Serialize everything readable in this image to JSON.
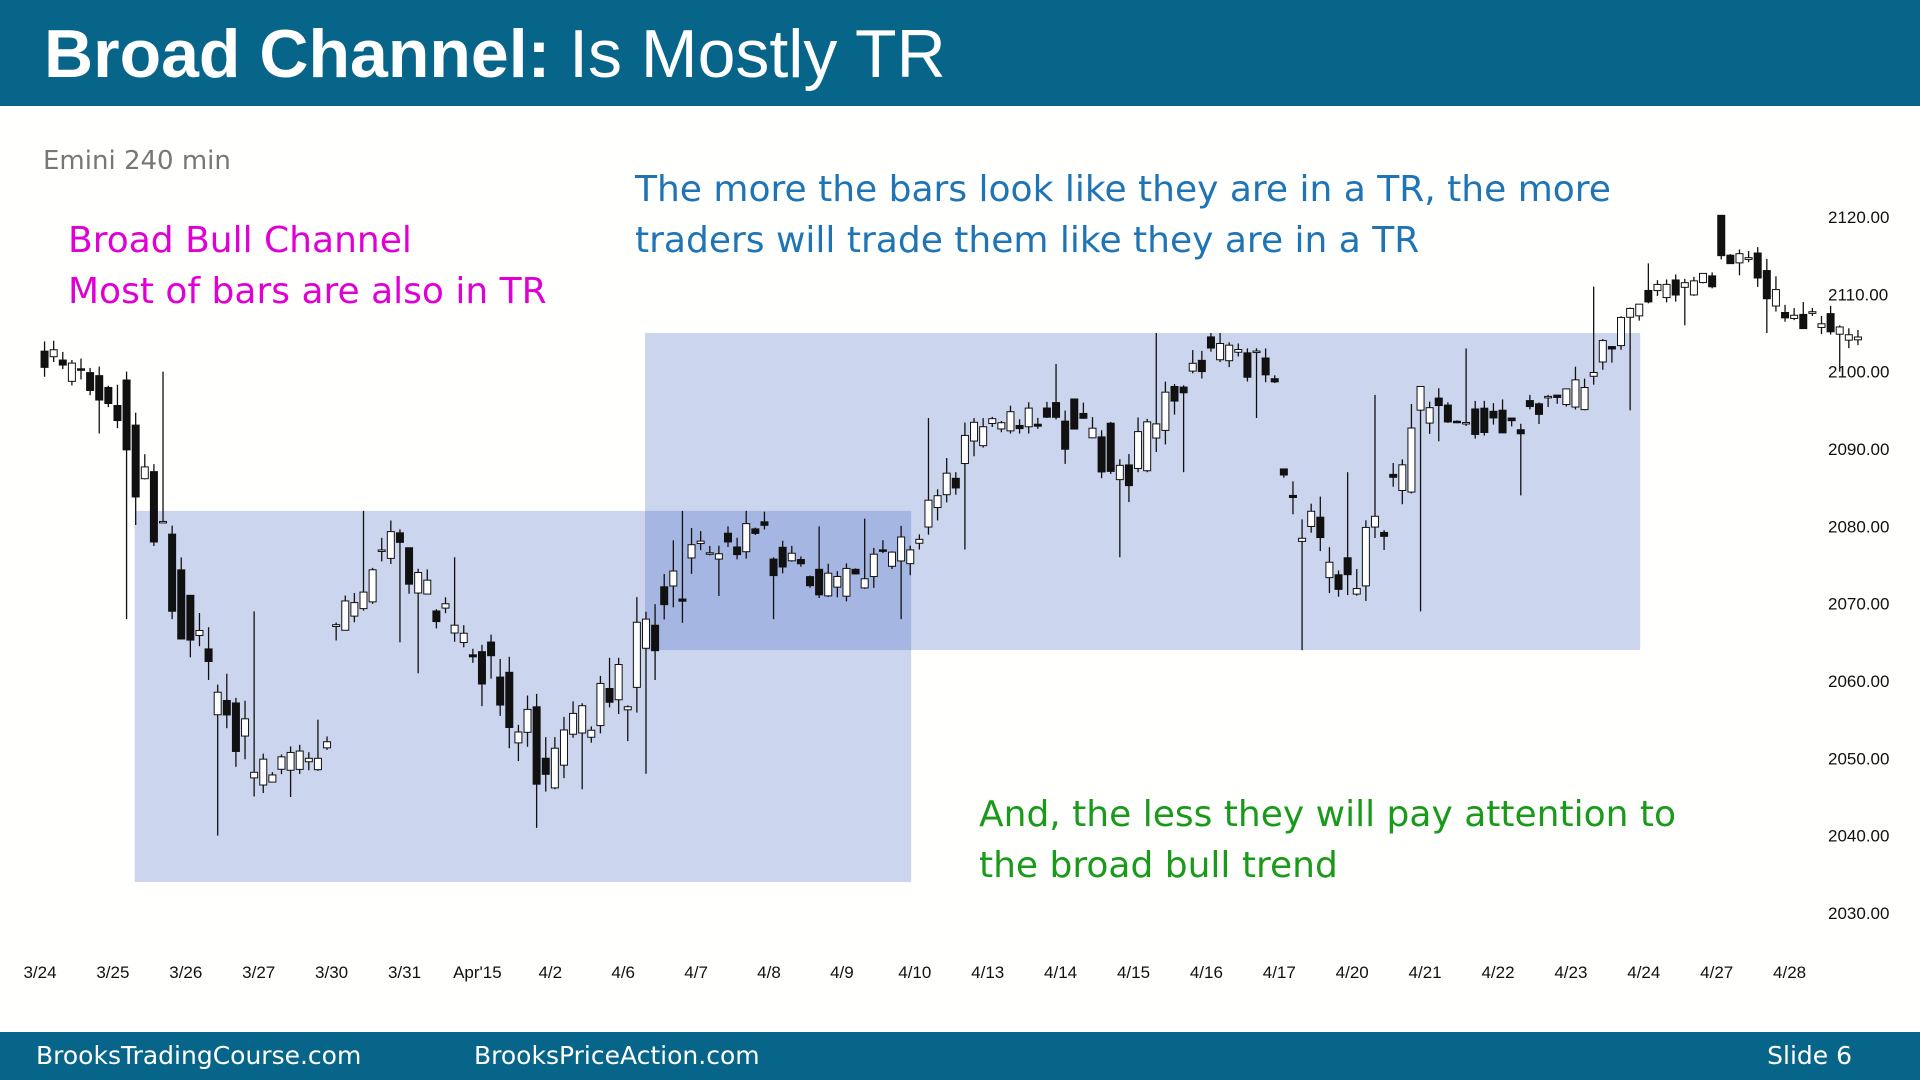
{
  "slide": {
    "title_bold": "Broad Channel:",
    "title_rest": " Is Mostly TR",
    "subtitle": "Emini 240 min",
    "notes": {
      "pink": [
        "Broad Bull Channel",
        "Most of bars are also in TR"
      ],
      "blue": [
        "The more the bars look like they are in a TR, the more",
        "traders will trade them like they are in a TR"
      ],
      "green": [
        "And, the less they will pay attention to",
        "the broad bull trend"
      ]
    },
    "footer": {
      "left": "BrooksTradingCourse.com",
      "center": "BrooksPriceAction.com",
      "right": "Slide  6"
    }
  },
  "colors": {
    "header": "#07658a",
    "pink": "#e000d6",
    "blue": "#1f74b5",
    "green": "#1a9a1a",
    "range_box": "#c9d4ef"
  },
  "chart_data": {
    "type": "candlestick",
    "instrument": "Emini 240 min",
    "ylim": [
      2030,
      2120
    ],
    "y_ticks": [
      "2120.00",
      "2110.00",
      "2100.00",
      "2090.00",
      "2080.00",
      "2070.00",
      "2060.00",
      "2050.00",
      "2040.00",
      "2030.00"
    ],
    "y_tick_values": [
      2120,
      2110,
      2100,
      2090,
      2080,
      2070,
      2060,
      2050,
      2040,
      2030
    ],
    "x_ticks": [
      "3/24",
      "3/25",
      "3/26",
      "3/27",
      "3/30",
      "3/31",
      "Apr'15",
      "4/2",
      "4/6",
      "4/7",
      "4/8",
      "4/9",
      "4/10",
      "4/13",
      "4/14",
      "4/15",
      "4/16",
      "4/17",
      "4/20",
      "4/21",
      "4/22",
      "4/23",
      "4/24",
      "4/27",
      "4/28"
    ],
    "trading_ranges": [
      {
        "from_session": "3/25",
        "to_session": "4/9",
        "low": 2034,
        "high": 2082
      },
      {
        "from_session": "4/6",
        "to_session": "4/23",
        "low": 2064,
        "high": 2105
      }
    ],
    "sessions": [
      {
        "date": "3/24",
        "open": 2102,
        "high": 2104,
        "low": 2092,
        "close": 2097
      },
      {
        "date": "3/25",
        "open": 2097,
        "high": 2100,
        "low": 2068,
        "close": 2070
      },
      {
        "date": "3/26",
        "open": 2068,
        "high": 2069,
        "low": 2040,
        "close": 2048
      },
      {
        "date": "3/27",
        "open": 2048,
        "high": 2055,
        "low": 2045,
        "close": 2051
      },
      {
        "date": "3/30",
        "open": 2066,
        "high": 2082,
        "low": 2065,
        "close": 2079
      },
      {
        "date": "3/31",
        "open": 2075,
        "high": 2076,
        "low": 2061,
        "close": 2063
      },
      {
        "date": "Apr'15",
        "open": 2063,
        "high": 2066,
        "low": 2041,
        "close": 2049
      },
      {
        "date": "4/2",
        "open": 2049,
        "high": 2063,
        "low": 2046,
        "close": 2060
      },
      {
        "date": "4/6",
        "open": 2060,
        "high": 2082,
        "low": 2048,
        "close": 2077
      },
      {
        "date": "4/7",
        "open": 2077,
        "high": 2082,
        "low": 2071,
        "close": 2079
      },
      {
        "date": "4/8",
        "open": 2076,
        "high": 2080,
        "low": 2068,
        "close": 2072
      },
      {
        "date": "4/9",
        "open": 2073,
        "high": 2081,
        "low": 2068,
        "close": 2078
      },
      {
        "date": "4/10",
        "open": 2079,
        "high": 2094,
        "low": 2077,
        "close": 2093
      },
      {
        "date": "4/13",
        "open": 2093,
        "high": 2101,
        "low": 2092,
        "close": 2095
      },
      {
        "date": "4/14",
        "open": 2094,
        "high": 2096,
        "low": 2076,
        "close": 2088
      },
      {
        "date": "4/15",
        "open": 2088,
        "high": 2105,
        "low": 2087,
        "close": 2103
      },
      {
        "date": "4/16",
        "open": 2103,
        "high": 2105,
        "low": 2094,
        "close": 2100
      },
      {
        "date": "4/17",
        "open": 2086,
        "high": 2087,
        "low": 2064,
        "close": 2070
      },
      {
        "date": "4/20",
        "open": 2070,
        "high": 2097,
        "low": 2069,
        "close": 2094
      },
      {
        "date": "4/21",
        "open": 2095,
        "high": 2103,
        "low": 2091,
        "close": 2093
      },
      {
        "date": "4/22",
        "open": 2093,
        "high": 2097,
        "low": 2084,
        "close": 2096
      },
      {
        "date": "4/23",
        "open": 2096,
        "high": 2111,
        "low": 2095,
        "close": 2110
      },
      {
        "date": "4/24",
        "open": 2110,
        "high": 2114,
        "low": 2106,
        "close": 2112
      },
      {
        "date": "4/27",
        "open": 2119,
        "high": 2120,
        "low": 2105,
        "close": 2108
      },
      {
        "date": "4/28",
        "open": 2108,
        "high": 2109,
        "low": 2100,
        "close": 2104
      }
    ]
  }
}
